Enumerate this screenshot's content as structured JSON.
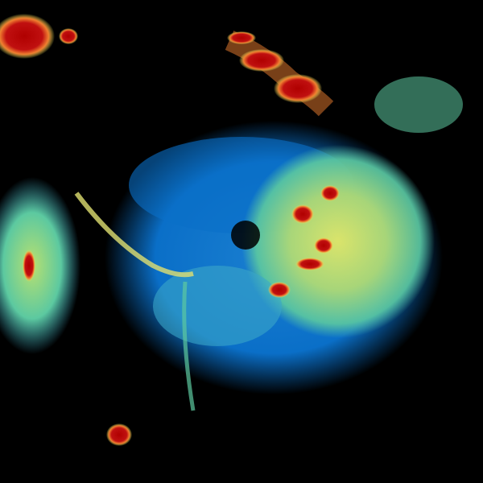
{
  "image": {
    "kind": "weather-radar-reflectivity",
    "palette": {
      "background": "#000000",
      "light": "#0a6fc8",
      "light_mid": "#3aa6c8",
      "moderate": "#5cc9a0",
      "moderate_high": "#b8e070",
      "high": "#f0f060",
      "heavy": "#f08030",
      "intense": "#b00000"
    }
  }
}
